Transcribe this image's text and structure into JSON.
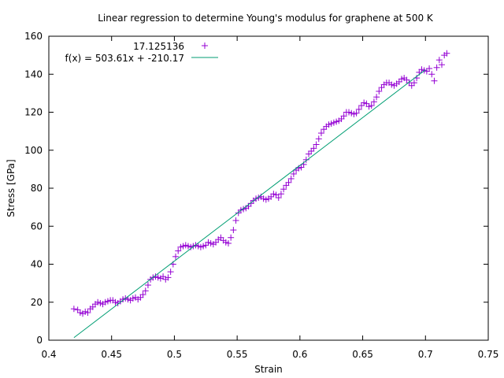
{
  "chart_data": {
    "type": "scatter",
    "title": "Linear regression to determine Young's modulus for graphene at 500 K",
    "xlabel": "Strain",
    "ylabel": "Stress [GPa]",
    "xlim": [
      0.4,
      0.75
    ],
    "ylim": [
      0,
      160
    ],
    "x_ticks": [
      "0.4",
      "0.45",
      "0.5",
      "0.55",
      "0.6",
      "0.65",
      "0.7",
      "0.75"
    ],
    "y_ticks": [
      "0",
      "20",
      "40",
      "60",
      "80",
      "100",
      "120",
      "140",
      "160"
    ],
    "x_tick_values": [
      0.4,
      0.45,
      0.5,
      0.55,
      0.6,
      0.65,
      0.7,
      0.75
    ],
    "y_tick_values": [
      0,
      20,
      40,
      60,
      80,
      100,
      120,
      140,
      160
    ],
    "grid": false,
    "legend_position": "top-left",
    "series": [
      {
        "name": "17.125136",
        "style": "points",
        "marker": "+",
        "color": "#9400d3",
        "points": [
          [
            0.42,
            16.5
          ],
          [
            0.423,
            16.0
          ],
          [
            0.425,
            14.5
          ],
          [
            0.427,
            14.0
          ],
          [
            0.429,
            15.0
          ],
          [
            0.431,
            14.5
          ],
          [
            0.433,
            16.5
          ],
          [
            0.435,
            17.5
          ],
          [
            0.437,
            19.0
          ],
          [
            0.439,
            20.0
          ],
          [
            0.441,
            19.5
          ],
          [
            0.443,
            19.0
          ],
          [
            0.445,
            20.0
          ],
          [
            0.447,
            20.5
          ],
          [
            0.449,
            21.0
          ],
          [
            0.451,
            21.0
          ],
          [
            0.453,
            20.0
          ],
          [
            0.455,
            19.5
          ],
          [
            0.457,
            20.5
          ],
          [
            0.459,
            21.5
          ],
          [
            0.461,
            22.0
          ],
          [
            0.463,
            21.5
          ],
          [
            0.465,
            21.0
          ],
          [
            0.467,
            22.0
          ],
          [
            0.469,
            22.5
          ],
          [
            0.471,
            21.5
          ],
          [
            0.473,
            22.5
          ],
          [
            0.475,
            24.0
          ],
          [
            0.477,
            26.0
          ],
          [
            0.479,
            29.0
          ],
          [
            0.481,
            32.0
          ],
          [
            0.483,
            33.0
          ],
          [
            0.485,
            33.5
          ],
          [
            0.487,
            33.0
          ],
          [
            0.489,
            32.5
          ],
          [
            0.491,
            33.5
          ],
          [
            0.493,
            32.0
          ],
          [
            0.495,
            33.0
          ],
          [
            0.497,
            36.0
          ],
          [
            0.499,
            40.0
          ],
          [
            0.501,
            44.0
          ],
          [
            0.503,
            47.0
          ],
          [
            0.505,
            49.0
          ],
          [
            0.507,
            49.5
          ],
          [
            0.509,
            50.0
          ],
          [
            0.511,
            49.5
          ],
          [
            0.513,
            49.0
          ],
          [
            0.515,
            49.5
          ],
          [
            0.517,
            50.0
          ],
          [
            0.519,
            49.5
          ],
          [
            0.521,
            49.0
          ],
          [
            0.523,
            49.5
          ],
          [
            0.525,
            50.0
          ],
          [
            0.527,
            51.5
          ],
          [
            0.529,
            51.0
          ],
          [
            0.531,
            50.5
          ],
          [
            0.533,
            51.5
          ],
          [
            0.535,
            53.0
          ],
          [
            0.537,
            54.0
          ],
          [
            0.539,
            52.5
          ],
          [
            0.541,
            51.5
          ],
          [
            0.543,
            51.0
          ],
          [
            0.545,
            54.0
          ],
          [
            0.547,
            58.0
          ],
          [
            0.549,
            63.0
          ],
          [
            0.551,
            67.0
          ],
          [
            0.553,
            68.5
          ],
          [
            0.555,
            69.0
          ],
          [
            0.557,
            69.5
          ],
          [
            0.559,
            70.5
          ],
          [
            0.561,
            72.0
          ],
          [
            0.563,
            73.5
          ],
          [
            0.565,
            74.5
          ],
          [
            0.567,
            75.0
          ],
          [
            0.569,
            75.5
          ],
          [
            0.571,
            74.5
          ],
          [
            0.573,
            74.0
          ],
          [
            0.575,
            74.5
          ],
          [
            0.577,
            75.5
          ],
          [
            0.579,
            77.0
          ],
          [
            0.581,
            76.5
          ],
          [
            0.583,
            75.0
          ],
          [
            0.585,
            77.0
          ],
          [
            0.587,
            79.5
          ],
          [
            0.589,
            81.5
          ],
          [
            0.591,
            83.0
          ],
          [
            0.593,
            85.0
          ],
          [
            0.595,
            87.5
          ],
          [
            0.597,
            89.5
          ],
          [
            0.599,
            90.5
          ],
          [
            0.601,
            91.0
          ],
          [
            0.603,
            92.5
          ],
          [
            0.605,
            95.0
          ],
          [
            0.607,
            98.0
          ],
          [
            0.609,
            99.5
          ],
          [
            0.611,
            101.0
          ],
          [
            0.613,
            103.0
          ],
          [
            0.615,
            106.0
          ],
          [
            0.617,
            109.0
          ],
          [
            0.619,
            111.0
          ],
          [
            0.621,
            112.5
          ],
          [
            0.623,
            113.5
          ],
          [
            0.625,
            114.0
          ],
          [
            0.627,
            114.5
          ],
          [
            0.629,
            115.0
          ],
          [
            0.631,
            115.5
          ],
          [
            0.633,
            116.5
          ],
          [
            0.635,
            118.0
          ],
          [
            0.637,
            120.0
          ],
          [
            0.639,
            120.0
          ],
          [
            0.641,
            119.5
          ],
          [
            0.643,
            119.0
          ],
          [
            0.645,
            119.5
          ],
          [
            0.647,
            121.5
          ],
          [
            0.649,
            123.5
          ],
          [
            0.651,
            125.0
          ],
          [
            0.653,
            124.5
          ],
          [
            0.655,
            123.0
          ],
          [
            0.657,
            123.5
          ],
          [
            0.659,
            125.5
          ],
          [
            0.661,
            128.0
          ],
          [
            0.663,
            131.0
          ],
          [
            0.665,
            133.0
          ],
          [
            0.667,
            134.5
          ],
          [
            0.669,
            135.5
          ],
          [
            0.671,
            135.5
          ],
          [
            0.673,
            134.5
          ],
          [
            0.675,
            134.0
          ],
          [
            0.677,
            135.0
          ],
          [
            0.679,
            136.0
          ],
          [
            0.681,
            137.5
          ],
          [
            0.683,
            138.0
          ],
          [
            0.685,
            137.0
          ],
          [
            0.687,
            135.5
          ],
          [
            0.689,
            134.0
          ],
          [
            0.691,
            135.5
          ],
          [
            0.693,
            138.0
          ],
          [
            0.695,
            141.0
          ],
          [
            0.697,
            142.5
          ],
          [
            0.699,
            142.0
          ],
          [
            0.701,
            141.5
          ],
          [
            0.703,
            143.0
          ],
          [
            0.705,
            140.0
          ],
          [
            0.707,
            136.5
          ],
          [
            0.709,
            143.5
          ],
          [
            0.711,
            147.5
          ],
          [
            0.713,
            145.0
          ],
          [
            0.715,
            150.0
          ],
          [
            0.717,
            151.0
          ]
        ]
      },
      {
        "name": "f(x) = 503.61x + -210.17",
        "style": "line",
        "color": "#009e73",
        "slope": 503.61,
        "intercept": -210.17,
        "x_range": [
          0.42,
          0.7
        ]
      }
    ]
  }
}
